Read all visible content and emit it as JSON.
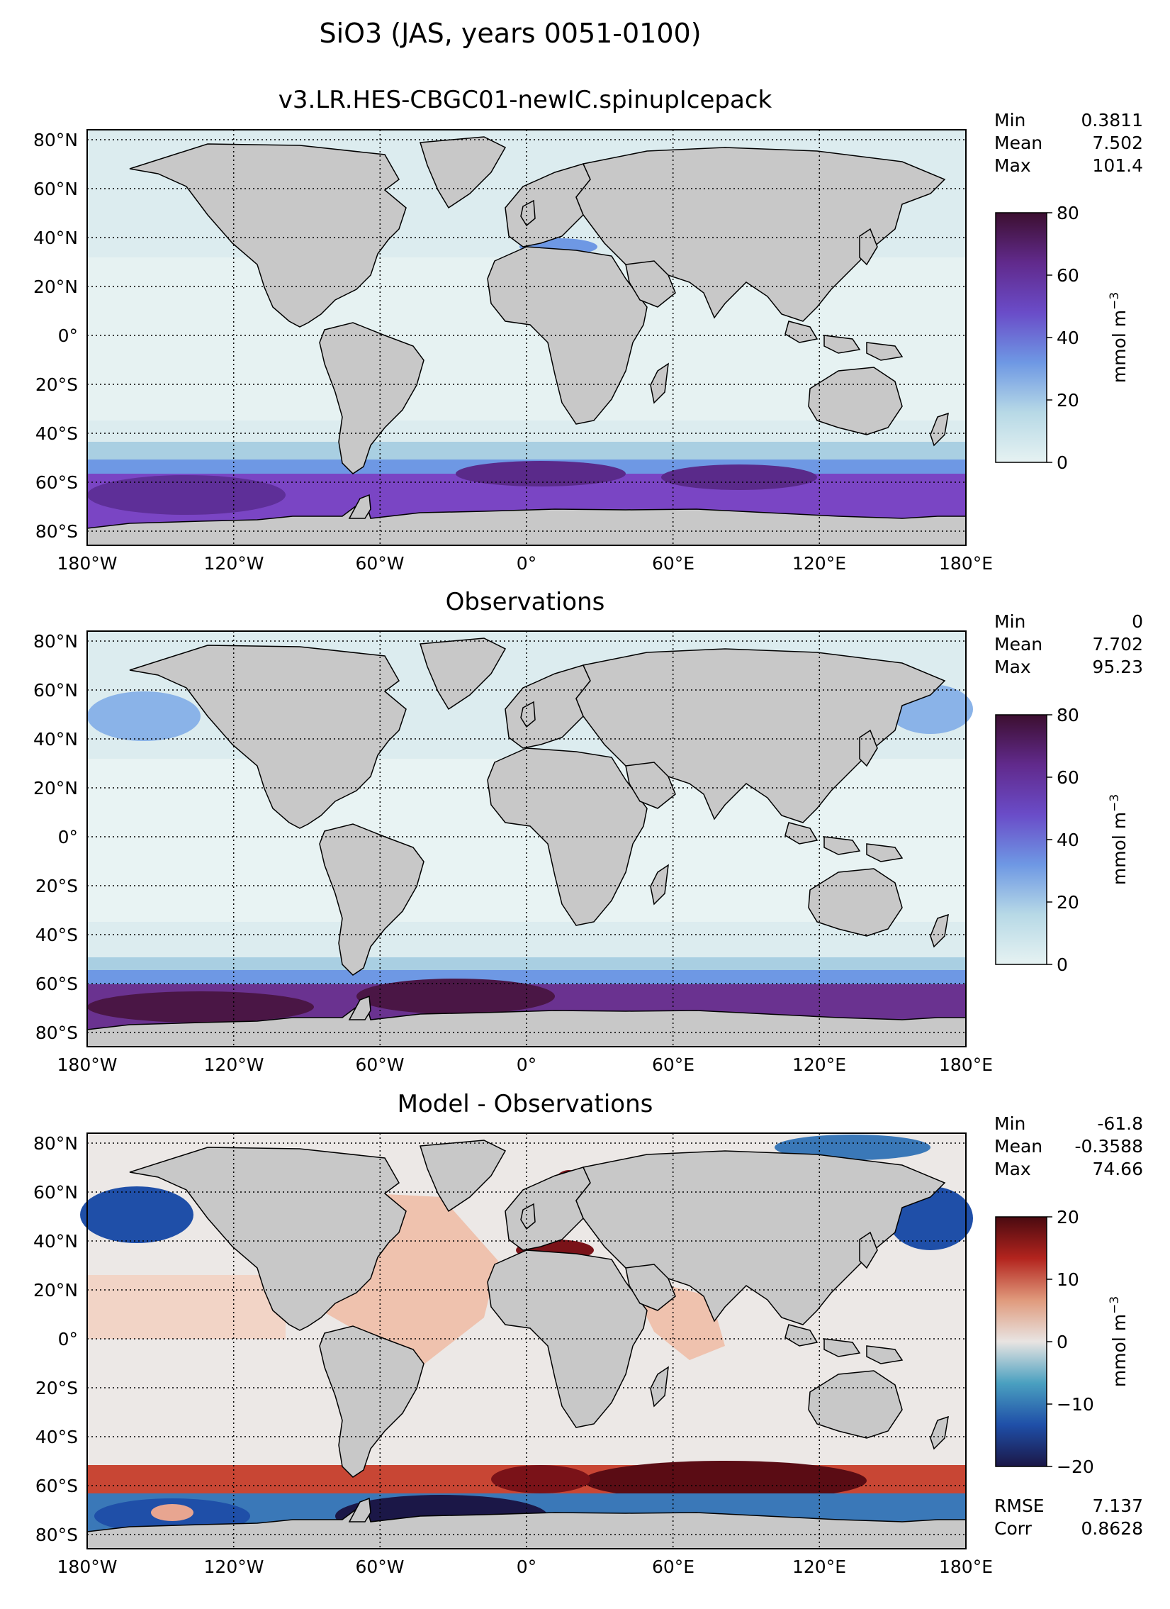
{
  "figure": {
    "title": "SiO3 (JAS, years 0051-0100)"
  },
  "axes": {
    "lat_ticks": [
      "80°N",
      "60°N",
      "40°N",
      "20°N",
      "0°",
      "20°S",
      "40°S",
      "60°S",
      "80°S"
    ],
    "lon_ticks": [
      "180°W",
      "120°W",
      "60°W",
      "0°",
      "60°E",
      "120°E",
      "180°E"
    ]
  },
  "panels": [
    {
      "title": "v3.LR.HES-CBGC01-newIC.spinupIcepack",
      "stats": [
        {
          "label": "Min",
          "value": "0.3811"
        },
        {
          "label": "Mean",
          "value": "7.502"
        },
        {
          "label": "Max",
          "value": "101.4"
        }
      ],
      "colorbar": {
        "ticks": [
          "80",
          "60",
          "40",
          "20",
          "0"
        ],
        "unit_main": "mmol m",
        "unit_exp": "−3",
        "colors": [
          "#e6f2f2",
          "#b7d9e6",
          "#6e98e4",
          "#6a4cc8",
          "#612a8c",
          "#3c0f30"
        ]
      },
      "extra_stats": []
    },
    {
      "title": "Observations",
      "stats": [
        {
          "label": "Min",
          "value": "0"
        },
        {
          "label": "Mean",
          "value": "7.702"
        },
        {
          "label": "Max",
          "value": "95.23"
        }
      ],
      "colorbar": {
        "ticks": [
          "80",
          "60",
          "40",
          "20",
          "0"
        ],
        "unit_main": "mmol m",
        "unit_exp": "−3",
        "colors": [
          "#e6f2f2",
          "#b7d9e6",
          "#6e98e4",
          "#6a4cc8",
          "#612a8c",
          "#3c0f30"
        ]
      },
      "extra_stats": []
    },
    {
      "title": "Model - Observations",
      "stats": [
        {
          "label": "Min",
          "value": "-61.8"
        },
        {
          "label": "Mean",
          "value": "-0.3588"
        },
        {
          "label": "Max",
          "value": "74.66"
        }
      ],
      "colorbar": {
        "ticks": [
          "20",
          "10",
          "0",
          "−10",
          "−20"
        ],
        "unit_main": "mmol m",
        "unit_exp": "−3",
        "colors": [
          "#1b1747",
          "#1f4fa8",
          "#4aa0c0",
          "#e8e4e2",
          "#e09a7c",
          "#b3241e",
          "#4a0a10"
        ]
      },
      "extra_stats": [
        {
          "label": "RMSE",
          "value": "7.137"
        },
        {
          "label": "Corr",
          "value": "0.8628"
        }
      ]
    }
  ],
  "colors": {
    "land": "#c8c8c8",
    "ocean_base": "#dcecef",
    "high_sio3": "#7a45c4",
    "very_high_sio3": "#3c0f30",
    "diff_positive": "#b3241e",
    "diff_negative": "#1f4fa8"
  }
}
